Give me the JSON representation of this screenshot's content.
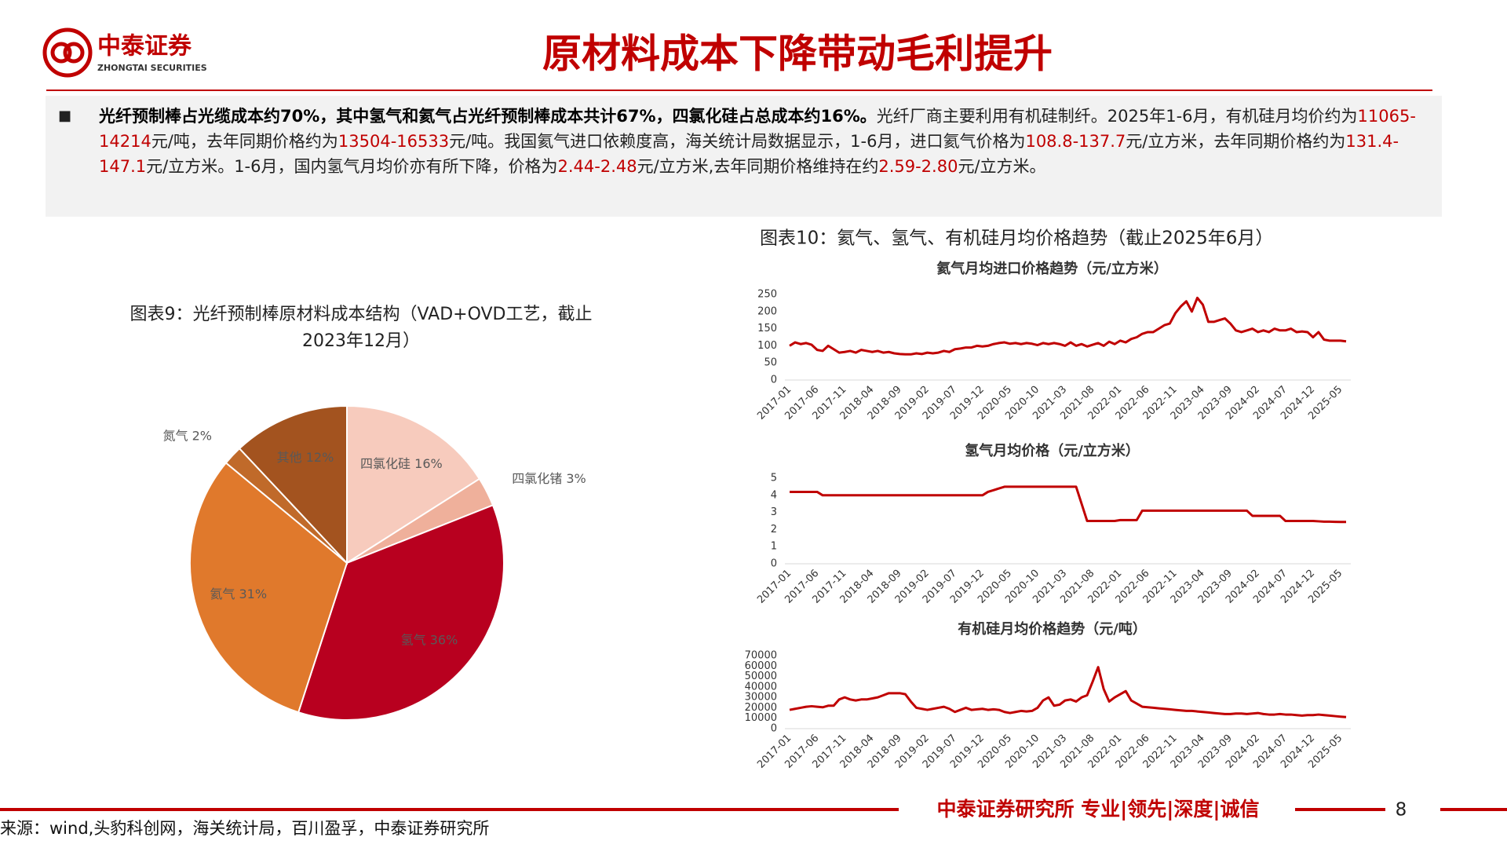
{
  "header": {
    "logo_cn": "中泰证券",
    "logo_en": "ZHONGTAI SECURITIES",
    "title": "原材料成本下降带动毛利提升"
  },
  "bullet": {
    "segments": [
      {
        "text": "光纤预制棒占光缆成本约70%，其中氢气和氦气占光纤预制棒成本共计67%，四氯化硅占总成本约16%。",
        "style": "bold"
      },
      {
        "text": "光纤厂商主要利用有机硅制纤。2025年1-6月，有机硅月均价约为",
        "style": "normal"
      },
      {
        "text": "11065-14214",
        "style": "red"
      },
      {
        "text": "元/吨，去年同期价格约为",
        "style": "normal"
      },
      {
        "text": "13504-16533",
        "style": "red"
      },
      {
        "text": "元/吨。我国氦气进口依赖度高，海关统计局数据显示，1-6月，进口氦气价格为",
        "style": "normal"
      },
      {
        "text": "108.8-137.7",
        "style": "red"
      },
      {
        "text": "元/立方米，去年同期价格约为",
        "style": "normal"
      },
      {
        "text": "131.4-147.1",
        "style": "red"
      },
      {
        "text": "元/立方米。1-6月，国内氢气月均价亦有所下降，价格为",
        "style": "normal"
      },
      {
        "text": "2.44-2.48",
        "style": "red"
      },
      {
        "text": "元/立方米,去年同期价格维持在约",
        "style": "normal"
      },
      {
        "text": "2.59-2.80",
        "style": "red"
      },
      {
        "text": "元/立方米。",
        "style": "normal"
      }
    ]
  },
  "figure_caption": "图表10：氦气、氢气、有机硅月均价格趋势（截止2025年6月）",
  "chart_data": [
    {
      "type": "pie",
      "title": "图表9：光纤预制棒原材料成本结构（VAD+OVD工艺，截止2023年12月）",
      "categories": [
        "四氯化硅",
        "四氯化锗",
        "氢气",
        "氦气",
        "氮气",
        "其他"
      ],
      "values": [
        16,
        3,
        36,
        31,
        2,
        12
      ],
      "value_labels": [
        "16%",
        "3%",
        "36%",
        "31%",
        "2%",
        "12%"
      ],
      "colors": [
        "#f7cbbd",
        "#efb09b",
        "#b8001f",
        "#e0792c",
        "#c06a2a",
        "#a3531f"
      ]
    },
    {
      "type": "line",
      "title": "氦气月均进口价格趋势（元/立方米）",
      "color": "#c00000",
      "ylim": [
        0,
        250
      ],
      "yticks": [
        0,
        50,
        100,
        150,
        200,
        250
      ],
      "categories": [
        "2017-01",
        null,
        null,
        null,
        null,
        "2017-06",
        null,
        null,
        null,
        null,
        "2017-11",
        null,
        null,
        null,
        null,
        "2018-04",
        null,
        null,
        null,
        null,
        "2018-09",
        null,
        null,
        null,
        null,
        "2019-02",
        null,
        null,
        null,
        null,
        "2019-07",
        null,
        null,
        null,
        null,
        "2019-12",
        null,
        null,
        null,
        null,
        "2020-05",
        null,
        null,
        null,
        null,
        "2020-10",
        null,
        null,
        null,
        null,
        "2021-03",
        null,
        null,
        null,
        null,
        "2021-08",
        null,
        null,
        null,
        null,
        "2022-01",
        null,
        null,
        null,
        null,
        "2022-06",
        null,
        null,
        null,
        null,
        "2022-11",
        null,
        null,
        null,
        null,
        "2023-04",
        null,
        null,
        null,
        null,
        "2023-09",
        null,
        null,
        null,
        null,
        "2024-02",
        null,
        null,
        null,
        null,
        "2024-07",
        null,
        null,
        null,
        null,
        "2024-12",
        null,
        null,
        null,
        null,
        "2025-05",
        null
      ],
      "values": [
        100,
        110,
        105,
        108,
        103,
        88,
        85,
        100,
        90,
        80,
        82,
        85,
        80,
        88,
        85,
        82,
        85,
        80,
        82,
        78,
        76,
        75,
        75,
        78,
        76,
        80,
        78,
        80,
        85,
        82,
        90,
        92,
        95,
        95,
        100,
        98,
        100,
        105,
        108,
        110,
        106,
        108,
        105,
        108,
        106,
        102,
        108,
        105,
        108,
        105,
        100,
        110,
        100,
        105,
        98,
        103,
        108,
        100,
        112,
        105,
        115,
        110,
        120,
        125,
        135,
        140,
        140,
        150,
        160,
        165,
        195,
        215,
        230,
        200,
        240,
        220,
        170,
        170,
        175,
        180,
        165,
        145,
        140,
        145,
        150,
        140,
        145,
        140,
        150,
        145,
        145,
        150,
        140,
        142,
        140,
        125,
        140,
        118,
        115,
        115,
        115,
        113
      ]
    },
    {
      "type": "line",
      "title": "氢气月均价格（元/立方米）",
      "color": "#c00000",
      "ylim": [
        0,
        5
      ],
      "yticks": [
        0,
        1,
        2,
        3,
        4,
        5
      ],
      "categories": [
        "2017-01",
        null,
        null,
        null,
        null,
        "2017-06",
        null,
        null,
        null,
        null,
        "2017-11",
        null,
        null,
        null,
        null,
        "2018-04",
        null,
        null,
        null,
        null,
        "2018-09",
        null,
        null,
        null,
        null,
        "2019-02",
        null,
        null,
        null,
        null,
        "2019-07",
        null,
        null,
        null,
        null,
        "2019-12",
        null,
        null,
        null,
        null,
        "2020-05",
        null,
        null,
        null,
        null,
        "2020-10",
        null,
        null,
        null,
        null,
        "2021-03",
        null,
        null,
        null,
        null,
        "2021-08",
        null,
        null,
        null,
        null,
        "2022-01",
        null,
        null,
        null,
        null,
        "2022-06",
        null,
        null,
        null,
        null,
        "2022-11",
        null,
        null,
        null,
        null,
        "2023-04",
        null,
        null,
        null,
        null,
        "2023-09",
        null,
        null,
        null,
        null,
        "2024-02",
        null,
        null,
        null,
        null,
        "2024-07",
        null,
        null,
        null,
        null,
        "2024-12",
        null,
        null,
        null,
        null,
        "2025-05",
        null
      ],
      "values": [
        4.2,
        4.2,
        4.2,
        4.2,
        4.2,
        4.2,
        4,
        4,
        4,
        4,
        4,
        4,
        4,
        4,
        4,
        4,
        4,
        4,
        4,
        4,
        4,
        4,
        4,
        4,
        4,
        4,
        4,
        4,
        4,
        4,
        4,
        4,
        4,
        4,
        4,
        4,
        4.2,
        4.3,
        4.4,
        4.5,
        4.5,
        4.5,
        4.5,
        4.5,
        4.5,
        4.5,
        4.5,
        4.5,
        4.5,
        4.5,
        4.5,
        4.5,
        4.5,
        3.5,
        2.5,
        2.5,
        2.5,
        2.5,
        2.5,
        2.5,
        2.55,
        2.55,
        2.55,
        2.55,
        3.1,
        3.1,
        3.1,
        3.1,
        3.1,
        3.1,
        3.1,
        3.1,
        3.1,
        3.1,
        3.1,
        3.1,
        3.1,
        3.1,
        3.1,
        3.1,
        3.1,
        3.1,
        3.1,
        3.1,
        2.8,
        2.8,
        2.8,
        2.8,
        2.8,
        2.8,
        2.5,
        2.5,
        2.5,
        2.5,
        2.5,
        2.5,
        2.48,
        2.46,
        2.46,
        2.45,
        2.44,
        2.44
      ]
    },
    {
      "type": "line",
      "title": "有机硅月均价格趋势（元/吨）",
      "color": "#c00000",
      "ylim": [
        0,
        70000
      ],
      "yticks": [
        0,
        10000,
        20000,
        30000,
        40000,
        50000,
        60000,
        70000
      ],
      "categories": [
        "2017-01",
        null,
        null,
        null,
        null,
        "2017-06",
        null,
        null,
        null,
        null,
        "2017-11",
        null,
        null,
        null,
        null,
        "2018-04",
        null,
        null,
        null,
        null,
        "2018-09",
        null,
        null,
        null,
        null,
        "2019-02",
        null,
        null,
        null,
        null,
        "2019-07",
        null,
        null,
        null,
        null,
        "2019-12",
        null,
        null,
        null,
        null,
        "2020-05",
        null,
        null,
        null,
        null,
        "2020-10",
        null,
        null,
        null,
        null,
        "2021-03",
        null,
        null,
        null,
        null,
        "2021-08",
        null,
        null,
        null,
        null,
        "2022-01",
        null,
        null,
        null,
        null,
        "2022-06",
        null,
        null,
        null,
        null,
        "2022-11",
        null,
        null,
        null,
        null,
        "2023-04",
        null,
        null,
        null,
        null,
        "2023-09",
        null,
        null,
        null,
        null,
        "2024-02",
        null,
        null,
        null,
        null,
        "2024-07",
        null,
        null,
        null,
        null,
        "2024-12",
        null,
        null,
        null,
        null,
        "2025-05",
        null
      ],
      "values": [
        18000,
        19000,
        20000,
        21000,
        21500,
        21000,
        20500,
        22000,
        22000,
        28000,
        30000,
        28000,
        27000,
        28000,
        28000,
        29000,
        30000,
        32000,
        34000,
        34000,
        34000,
        33000,
        26000,
        20000,
        19000,
        18000,
        19000,
        20000,
        21000,
        19000,
        16000,
        18000,
        20000,
        18000,
        18500,
        19000,
        18000,
        18500,
        18000,
        16000,
        15000,
        16000,
        17000,
        16500,
        17000,
        20000,
        27000,
        30000,
        22000,
        23000,
        27000,
        28000,
        26000,
        30000,
        32000,
        45000,
        59000,
        38000,
        26000,
        30000,
        33000,
        36000,
        27000,
        24000,
        21000,
        20500,
        20000,
        19500,
        19000,
        18500,
        18000,
        17500,
        17000,
        17000,
        16500,
        16000,
        15500,
        15000,
        14500,
        14000,
        14000,
        14500,
        14500,
        14000,
        14500,
        15000,
        14000,
        13500,
        13500,
        14000,
        13500,
        13500,
        13000,
        12500,
        13000,
        13000,
        13500,
        13000,
        12500,
        12000,
        11500,
        11065
      ]
    }
  ],
  "footer": {
    "tagline": "中泰证券研究所 专业|领先|深度|诚信",
    "page": 8,
    "source": "来源：wind,头豹科创网，海关统计局，百川盈孚，中泰证券研究所"
  }
}
